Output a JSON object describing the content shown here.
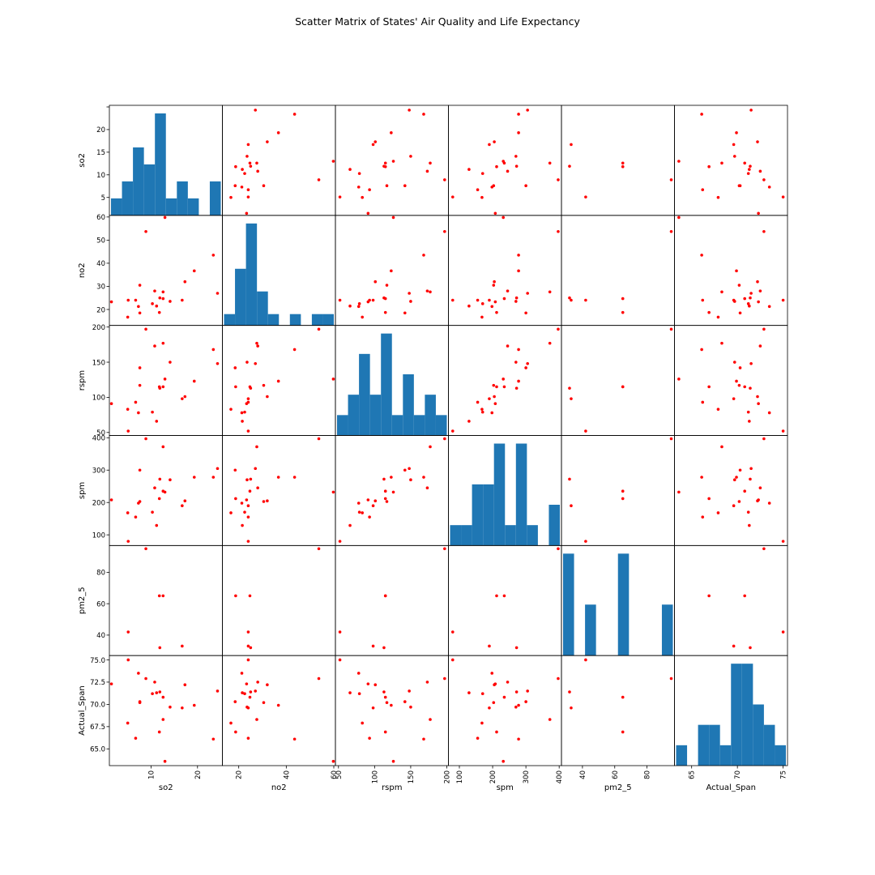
{
  "figure": {
    "title": "Scatter Matrix of States' Air Quality and Life Expectancy"
  },
  "chart_data": {
    "type": "scatter",
    "title": "Scatter Matrix of States' Air Quality and Life Expectancy",
    "variables": [
      "so2",
      "no2",
      "rspm",
      "spm",
      "pm2_5",
      "Actual_Span"
    ],
    "marker_color": "#ff0000",
    "hist_color": "#1f77b4",
    "grid": false,
    "axes": [
      {
        "name": "so2",
        "range": [
          1.4,
          25.0
        ],
        "ticks": [
          5,
          10,
          15,
          20,
          25
        ],
        "tick_labels": [
          "5",
          "10",
          "15",
          "20",
          ""
        ],
        "bottom_ticks": [
          10,
          20
        ],
        "bottom_tick_labels": [
          "10",
          "20"
        ]
      },
      {
        "name": "no2",
        "range": [
          13.8,
          60.0
        ],
        "ticks": [
          20,
          30,
          40,
          50,
          60
        ],
        "tick_labels": [
          "20",
          "30",
          "40",
          "50",
          "60"
        ],
        "bottom_ticks": [
          20,
          40,
          60
        ],
        "bottom_tick_labels": [
          "20",
          "40",
          "60"
        ]
      },
      {
        "name": "rspm",
        "range": [
          48,
          200
        ],
        "ticks": [
          50,
          100,
          150,
          200
        ],
        "tick_labels": [
          "50",
          "100",
          "150",
          "200"
        ],
        "bottom_ticks": [
          50,
          100,
          150,
          200
        ],
        "bottom_tick_labels": [
          "50",
          "100",
          "150",
          "200"
        ]
      },
      {
        "name": "spm",
        "range": [
          72,
          402
        ],
        "ticks": [
          100,
          200,
          300,
          400
        ],
        "tick_labels": [
          "100",
          "200",
          "300",
          "400"
        ],
        "bottom_ticks": [
          100,
          200,
          300,
          400
        ],
        "bottom_tick_labels": [
          "100",
          "200",
          "300",
          "400"
        ]
      },
      {
        "name": "pm2_5",
        "range": [
          28,
          96
        ],
        "ticks": [
          40,
          60,
          80
        ],
        "tick_labels": [
          "40",
          "60",
          "80"
        ],
        "bottom_ticks": [
          40,
          60,
          80
        ],
        "bottom_tick_labels": [
          "40",
          "60",
          "80"
        ]
      },
      {
        "name": "Actual_Span",
        "range": [
          63.3,
          75.3
        ],
        "ticks": [
          65.0,
          67.5,
          70.0,
          72.5,
          75.0
        ],
        "tick_labels": [
          "65.0",
          "67.5",
          "70.0",
          "72.5",
          "75.0"
        ],
        "bottom_ticks": [
          65,
          70,
          75
        ],
        "bottom_tick_labels": [
          "65",
          "70",
          "75"
        ]
      }
    ],
    "observations": [
      {
        "so2": 1.5,
        "no2": 23.3,
        "rspm": 91,
        "spm": 208,
        "pm2_5": null,
        "Actual_Span": 72.3
      },
      {
        "so2": 5.1,
        "no2": 24.0,
        "rspm": 52,
        "spm": 80,
        "pm2_5": 42,
        "Actual_Span": 75.0
      },
      {
        "so2": 5.0,
        "no2": 16.7,
        "rspm": 83,
        "spm": 168,
        "pm2_5": null,
        "Actual_Span": 67.9
      },
      {
        "so2": 6.7,
        "no2": 24.0,
        "rspm": 93,
        "spm": 155,
        "pm2_5": null,
        "Actual_Span": 66.2
      },
      {
        "so2": 7.3,
        "no2": 21.3,
        "rspm": 78,
        "spm": 198,
        "pm2_5": null,
        "Actual_Span": 73.5
      },
      {
        "so2": 7.6,
        "no2": 30.5,
        "rspm": 117,
        "spm": 203,
        "pm2_5": null,
        "Actual_Span": 70.2
      },
      {
        "so2": 7.6,
        "no2": 18.5,
        "rspm": 142,
        "spm": 300,
        "pm2_5": null,
        "Actual_Span": 70.3
      },
      {
        "so2": 8.9,
        "no2": 53.7,
        "rspm": 197,
        "spm": 397,
        "pm2_5": 95,
        "Actual_Span": 72.9
      },
      {
        "so2": 10.3,
        "no2": 22.5,
        "rspm": 79,
        "spm": 170,
        "pm2_5": null,
        "Actual_Span": 71.2
      },
      {
        "so2": 10.8,
        "no2": 28.0,
        "rspm": 173,
        "spm": 245,
        "pm2_5": null,
        "Actual_Span": 72.5
      },
      {
        "so2": 11.2,
        "no2": 21.5,
        "rspm": 66,
        "spm": 129,
        "pm2_5": null,
        "Actual_Span": 71.3
      },
      {
        "so2": 11.8,
        "no2": 18.7,
        "rspm": 115,
        "spm": 212,
        "pm2_5": 65,
        "Actual_Span": 66.9
      },
      {
        "so2": 11.9,
        "no2": 25.0,
        "rspm": 113,
        "spm": 272,
        "pm2_5": 32,
        "Actual_Span": 71.4
      },
      {
        "so2": 12.6,
        "no2": 27.6,
        "rspm": 177,
        "spm": 372,
        "pm2_5": null,
        "Actual_Span": 68.3
      },
      {
        "so2": 12.6,
        "no2": 24.7,
        "rspm": 115,
        "spm": 235,
        "pm2_5": 65,
        "Actual_Span": 70.8
      },
      {
        "so2": 13.0,
        "no2": 59.8,
        "rspm": 126,
        "spm": 232,
        "pm2_5": null,
        "Actual_Span": 63.6
      },
      {
        "so2": 14.1,
        "no2": 23.5,
        "rspm": 150,
        "spm": 270,
        "pm2_5": null,
        "Actual_Span": 69.7
      },
      {
        "so2": 16.7,
        "no2": 24.0,
        "rspm": 98,
        "spm": 190,
        "pm2_5": 33,
        "Actual_Span": 69.6
      },
      {
        "so2": 17.3,
        "no2": 32.0,
        "rspm": 101,
        "spm": 205,
        "pm2_5": null,
        "Actual_Span": 72.2
      },
      {
        "so2": 19.3,
        "no2": 36.7,
        "rspm": 123,
        "spm": 278,
        "pm2_5": null,
        "Actual_Span": 69.9
      },
      {
        "so2": 23.4,
        "no2": 43.5,
        "rspm": 168,
        "spm": 278,
        "pm2_5": null,
        "Actual_Span": 66.1
      },
      {
        "so2": 24.3,
        "no2": 27.0,
        "rspm": 148,
        "spm": 305,
        "pm2_5": null,
        "Actual_Span": 71.5
      }
    ]
  }
}
